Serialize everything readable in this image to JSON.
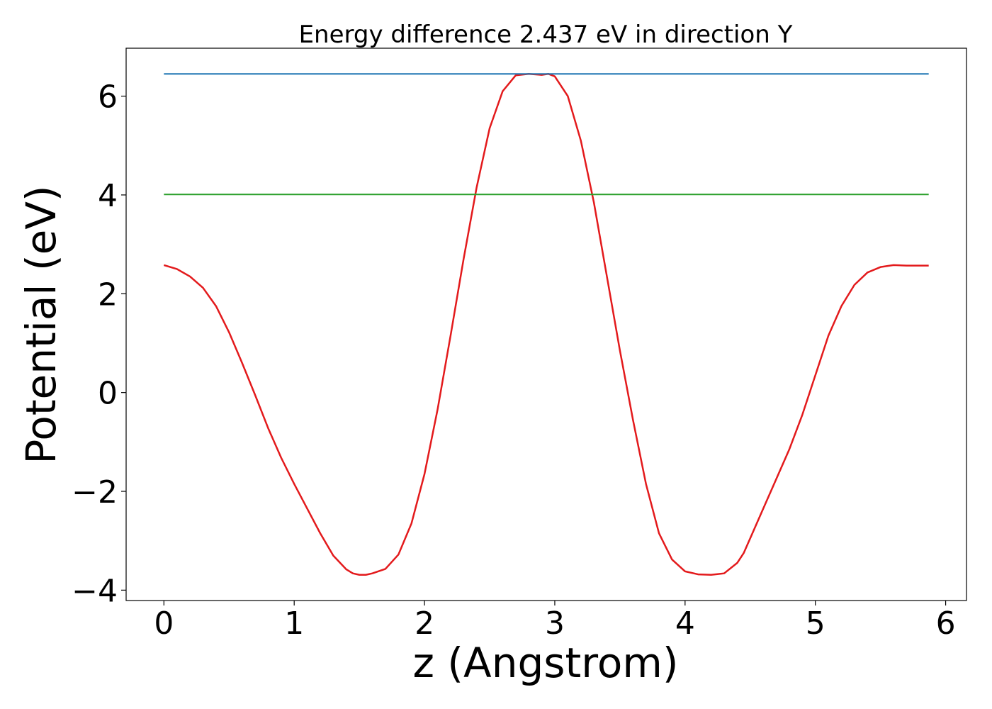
{
  "chart_data": {
    "type": "line",
    "title": "Energy difference 2.437 eV in direction Y",
    "xlabel": "z (Angstrom)",
    "ylabel": "Potential (eV)",
    "xlim": [
      -0.29,
      6.16
    ],
    "ylim": [
      -4.21,
      6.97
    ],
    "x_ticks": [
      0,
      1,
      2,
      3,
      4,
      5,
      6
    ],
    "x_tick_labels": [
      "0",
      "1",
      "2",
      "3",
      "4",
      "5",
      "6"
    ],
    "y_ticks": [
      -4,
      -2,
      0,
      2,
      4,
      6
    ],
    "y_tick_labels": [
      "−4",
      "−2",
      "0",
      "2",
      "4",
      "6"
    ],
    "grid": false,
    "colors": {
      "potential": "#e31a1c",
      "max_line": "#1f77b4",
      "mean_line": "#2ca02c"
    },
    "series": [
      {
        "key": "potential",
        "x": [
          0.0,
          0.1,
          0.2,
          0.3,
          0.4,
          0.5,
          0.6,
          0.7,
          0.8,
          0.9,
          1.0,
          1.1,
          1.2,
          1.3,
          1.4,
          1.45,
          1.5,
          1.55,
          1.6,
          1.7,
          1.8,
          1.9,
          2.0,
          2.1,
          2.2,
          2.3,
          2.4,
          2.5,
          2.6,
          2.7,
          2.8,
          2.9,
          2.95,
          3.0,
          3.1,
          3.2,
          3.3,
          3.4,
          3.5,
          3.6,
          3.7,
          3.8,
          3.9,
          4.0,
          4.1,
          4.2,
          4.3,
          4.4,
          4.45,
          4.5,
          4.6,
          4.7,
          4.8,
          4.9,
          5.0,
          5.1,
          5.2,
          5.3,
          5.4,
          5.5,
          5.6,
          5.7,
          5.8,
          5.87
        ],
        "y": [
          2.58,
          2.5,
          2.35,
          2.12,
          1.75,
          1.22,
          0.6,
          -0.05,
          -0.72,
          -1.32,
          -1.85,
          -2.35,
          -2.85,
          -3.3,
          -3.58,
          -3.66,
          -3.69,
          -3.69,
          -3.66,
          -3.57,
          -3.28,
          -2.65,
          -1.65,
          -0.35,
          1.15,
          2.7,
          4.15,
          5.35,
          6.1,
          6.42,
          6.45,
          6.43,
          6.45,
          6.4,
          6.0,
          5.1,
          3.85,
          2.35,
          0.85,
          -0.55,
          -1.85,
          -2.85,
          -3.38,
          -3.62,
          -3.68,
          -3.69,
          -3.66,
          -3.45,
          -3.25,
          -2.95,
          -2.35,
          -1.75,
          -1.15,
          -0.45,
          0.35,
          1.15,
          1.75,
          2.18,
          2.43,
          2.54,
          2.58,
          2.57,
          2.57,
          2.57
        ]
      },
      {
        "key": "max_line",
        "x": [
          0.0,
          5.87
        ],
        "y": [
          6.45,
          6.45
        ]
      },
      {
        "key": "mean_line",
        "x": [
          0.0,
          5.87
        ],
        "y": [
          4.01,
          4.01
        ]
      }
    ]
  }
}
